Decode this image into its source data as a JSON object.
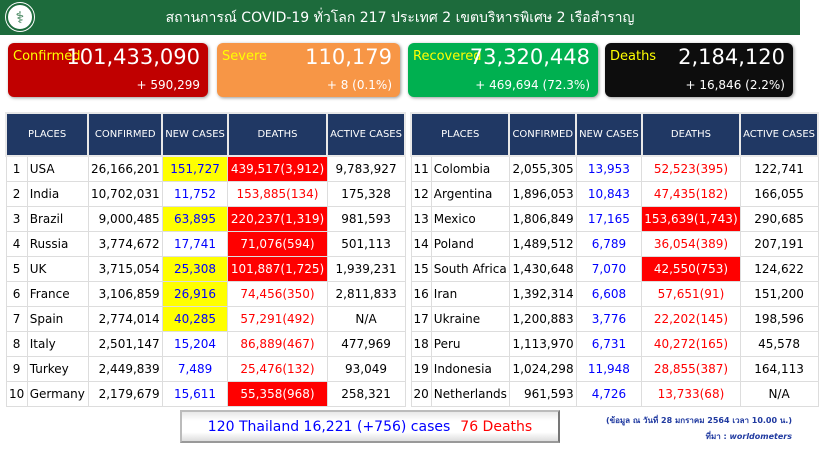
{
  "header": {
    "title": "สถานการณ์ COVID-19 ทั่วโลก 217 ประเทศ 2 เขตบริหารพิเศษ 2 เรือสำราญ",
    "logo_icon": "ministry-of-public-health-logo"
  },
  "cards": [
    {
      "label": "Confirmed",
      "value": "101,433,090",
      "delta": "+ 590,299",
      "color": "#c00000"
    },
    {
      "label": "Severe",
      "value": "110,179",
      "delta": "+ 8 (0.1%)",
      "color": "#f79646"
    },
    {
      "label": "Recovered",
      "value": "73,320,448",
      "delta": "+ 469,694 (72.3%)",
      "color": "#00b050"
    },
    {
      "label": "Deaths",
      "value": "2,184,120",
      "delta": "+ 16,846 (2.2%)",
      "color": "#0d0d0d"
    }
  ],
  "columns": [
    "PLACES",
    "CONFIRMED",
    "NEW CASES",
    "DEATHS",
    "ACTIVE CASES"
  ],
  "left_rows": [
    {
      "rank": "1",
      "place": "USA",
      "confirmed": "26,166,201",
      "new": "151,727",
      "deaths": "439,517(3,912)",
      "active": "9,783,927",
      "hl_new": true,
      "hl_deaths": true
    },
    {
      "rank": "2",
      "place": "India",
      "confirmed": "10,702,031",
      "new": "11,752",
      "deaths": "153,885(134)",
      "active": "175,328"
    },
    {
      "rank": "3",
      "place": "Brazil",
      "confirmed": "9,000,485",
      "new": "63,895",
      "deaths": "220,237(1,319)",
      "active": "981,593",
      "hl_new": true,
      "hl_deaths": true
    },
    {
      "rank": "4",
      "place": "Russia",
      "confirmed": "3,774,672",
      "new": "17,741",
      "deaths": "71,076(594)",
      "active": "501,113",
      "hl_deaths": true
    },
    {
      "rank": "5",
      "place": "UK",
      "confirmed": "3,715,054",
      "new": "25,308",
      "deaths": "101,887(1,725)",
      "active": "1,939,231",
      "hl_new": true,
      "hl_deaths": true
    },
    {
      "rank": "6",
      "place": "France",
      "confirmed": "3,106,859",
      "new": "26,916",
      "deaths": "74,456(350)",
      "active": "2,811,833",
      "hl_new": true
    },
    {
      "rank": "7",
      "place": "Spain",
      "confirmed": "2,774,014",
      "new": "40,285",
      "deaths": "57,291(492)",
      "active": "N/A",
      "hl_new": true
    },
    {
      "rank": "8",
      "place": "Italy",
      "confirmed": "2,501,147",
      "new": "15,204",
      "deaths": "86,889(467)",
      "active": "477,969"
    },
    {
      "rank": "9",
      "place": "Turkey",
      "confirmed": "2,449,839",
      "new": "7,489",
      "deaths": "25,476(132)",
      "active": "93,049"
    },
    {
      "rank": "10",
      "place": "Germany",
      "confirmed": "2,179,679",
      "new": "15,611",
      "deaths": "55,358(968)",
      "active": "258,321",
      "hl_deaths": true
    }
  ],
  "right_rows": [
    {
      "rank": "11",
      "place": "Colombia",
      "confirmed": "2,055,305",
      "new": "13,953",
      "deaths": "52,523(395)",
      "active": "122,741"
    },
    {
      "rank": "12",
      "place": "Argentina",
      "confirmed": "1,896,053",
      "new": "10,843",
      "deaths": "47,435(182)",
      "active": "166,055"
    },
    {
      "rank": "13",
      "place": "Mexico",
      "confirmed": "1,806,849",
      "new": "17,165",
      "deaths": "153,639(1,743)",
      "active": "290,685",
      "hl_deaths": true
    },
    {
      "rank": "14",
      "place": "Poland",
      "confirmed": "1,489,512",
      "new": "6,789",
      "deaths": "36,054(389)",
      "active": "207,191"
    },
    {
      "rank": "15",
      "place": "South Africa",
      "confirmed": "1,430,648",
      "new": "7,070",
      "deaths": "42,550(753)",
      "active": "124,622",
      "hl_deaths": true
    },
    {
      "rank": "16",
      "place": "Iran",
      "confirmed": "1,392,314",
      "new": "6,608",
      "deaths": "57,651(91)",
      "active": "151,200"
    },
    {
      "rank": "17",
      "place": "Ukraine",
      "confirmed": "1,200,883",
      "new": "3,776",
      "deaths": "22,202(145)",
      "active": "198,596"
    },
    {
      "rank": "18",
      "place": "Peru",
      "confirmed": "1,113,970",
      "new": "6,731",
      "deaths": "40,272(165)",
      "active": "45,578"
    },
    {
      "rank": "19",
      "place": "Indonesia",
      "confirmed": "1,024,298",
      "new": "11,948",
      "deaths": "28,855(387)",
      "active": "164,113"
    },
    {
      "rank": "20",
      "place": "Netherlands",
      "confirmed": "961,593",
      "new": "4,726",
      "deaths": "13,733(68)",
      "active": "N/A"
    }
  ],
  "thailand": {
    "cases": "120 Thailand 16,221 (+756) cases",
    "deaths": "76 Deaths"
  },
  "note": {
    "date": "(ข้อมูล ณ วันที่ 28 มกราคม 2564 เวลา  10.00 น.)",
    "source_label": "ที่มา : ",
    "source": "worldometers"
  }
}
